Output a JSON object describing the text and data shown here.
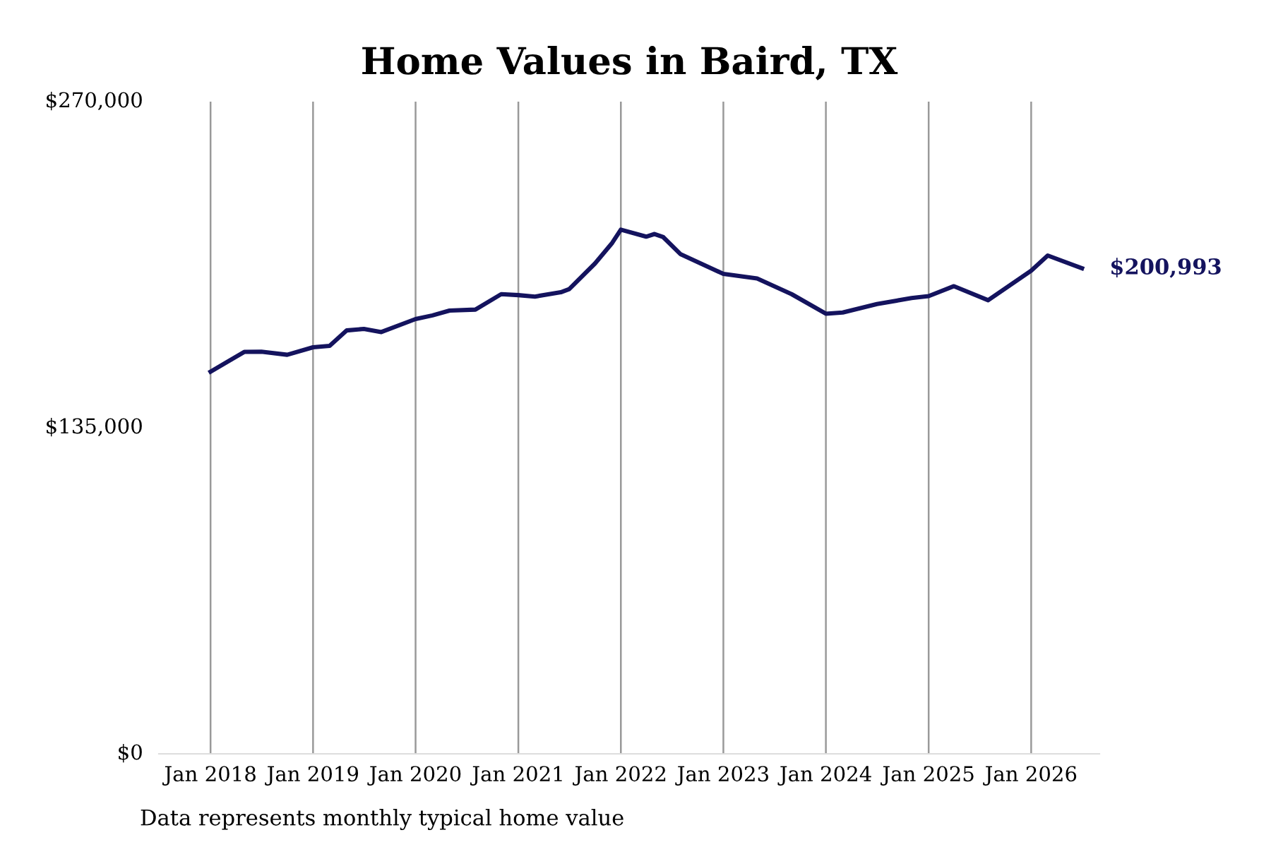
{
  "chart_data": {
    "type": "line",
    "title": "Home Values in Baird, TX",
    "x": [
      "2018-01",
      "2018-05",
      "2018-07",
      "2018-10",
      "2019-01",
      "2019-03",
      "2019-05",
      "2019-07",
      "2019-09",
      "2020-01",
      "2020-03",
      "2020-05",
      "2020-08",
      "2020-11",
      "2021-01",
      "2021-03",
      "2021-06",
      "2021-07",
      "2021-10",
      "2021-12",
      "2022-01",
      "2022-04",
      "2022-05",
      "2022-06",
      "2022-08",
      "2023-01",
      "2023-05",
      "2023-09",
      "2024-01",
      "2024-03",
      "2024-07",
      "2024-11",
      "2025-01",
      "2025-04",
      "2025-08",
      "2026-01",
      "2026-03",
      "2026-07"
    ],
    "series": [
      {
        "color": "#14135e",
        "values": [
          158200,
          166400,
          166500,
          165200,
          168300,
          168900,
          175300,
          175900,
          174600,
          180000,
          181500,
          183500,
          183900,
          190300,
          189900,
          189300,
          191100,
          192400,
          203000,
          211500,
          217000,
          214100,
          215200,
          213900,
          206900,
          198700,
          196800,
          190300,
          182200,
          182700,
          186200,
          188700,
          189500,
          193600,
          187800,
          200000,
          206300,
          200993
        ]
      }
    ],
    "xticks": [
      {
        "value": "2018-01",
        "label": "Jan 2018"
      },
      {
        "value": "2019-01",
        "label": "Jan 2019"
      },
      {
        "value": "2020-01",
        "label": "Jan 2020"
      },
      {
        "value": "2021-01",
        "label": "Jan 2021"
      },
      {
        "value": "2022-01",
        "label": "Jan 2022"
      },
      {
        "value": "2023-01",
        "label": "Jan 2023"
      },
      {
        "value": "2024-01",
        "label": "Jan 2024"
      },
      {
        "value": "2025-01",
        "label": "Jan 2025"
      },
      {
        "value": "2026-01",
        "label": "Jan 2026"
      }
    ],
    "xlim": [
      "2017-07",
      "2026-09"
    ],
    "ylim": [
      0,
      270000
    ],
    "yticks": [
      {
        "value": 0,
        "label": "$0"
      },
      {
        "value": 135000,
        "label": "$135,000"
      },
      {
        "value": 270000,
        "label": "$270,000"
      }
    ],
    "grid": "x",
    "legend": false,
    "marker": "none",
    "line_style": "solid",
    "annotations": [
      {
        "text": "$200,993",
        "x": "2026-07",
        "y": 200993
      },
      "Data represents monthly typical home value"
    ]
  }
}
